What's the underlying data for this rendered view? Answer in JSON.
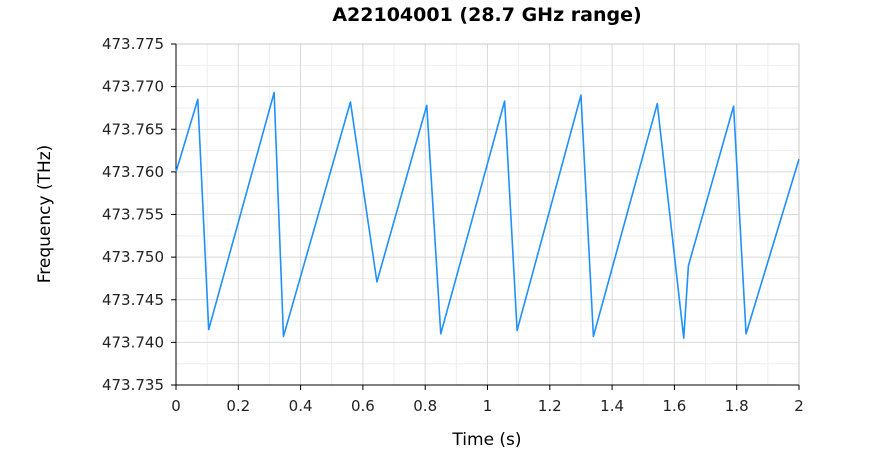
{
  "chart_data": {
    "type": "line",
    "title": "A22104001 (28.7 GHz range)",
    "xlabel": "Time (s)",
    "ylabel": "Frequency (THz)",
    "xlim": [
      0,
      2
    ],
    "ylim": [
      473.735,
      473.775
    ],
    "xticks": [
      0,
      0.2,
      0.4,
      0.6,
      0.8,
      1,
      1.2,
      1.4,
      1.6,
      1.8,
      2
    ],
    "xtick_labels": [
      "0",
      "0.2",
      "0.4",
      "0.6",
      "0.8",
      "1",
      "1.2",
      "1.4",
      "1.6",
      "1.8",
      "2"
    ],
    "yticks": [
      473.735,
      473.74,
      473.745,
      473.75,
      473.755,
      473.76,
      473.765,
      473.77,
      473.775
    ],
    "ytick_labels": [
      "473.735",
      "473.740",
      "473.745",
      "473.750",
      "473.755",
      "473.760",
      "473.765",
      "473.770",
      "473.775"
    ],
    "grid": true,
    "color": "#1e90ff",
    "series": [
      {
        "x": [
          0,
          0.07,
          0.105,
          0.315,
          0.345,
          0.56,
          0.645,
          0.805,
          0.85,
          1.055,
          1.095,
          1.3,
          1.34,
          1.545,
          1.63,
          1.645,
          1.79,
          1.83,
          2.0
        ],
        "y": [
          473.76,
          473.7685,
          473.7415,
          473.7693,
          473.7407,
          473.7682,
          473.7471,
          473.7678,
          473.741,
          473.7683,
          473.7414,
          473.769,
          473.7407,
          473.768,
          473.7405,
          473.749,
          473.7677,
          473.741,
          473.7615
        ]
      }
    ]
  }
}
